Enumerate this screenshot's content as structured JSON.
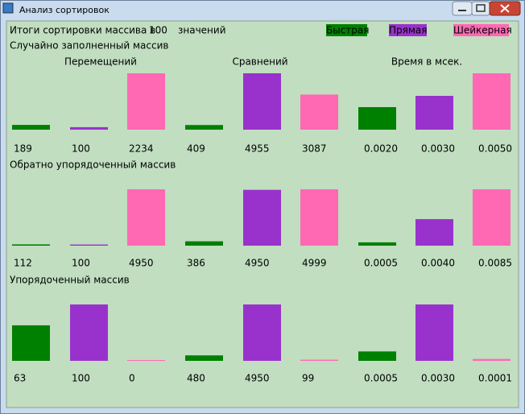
{
  "window": {
    "title": "Анализ сортировок"
  },
  "header": {
    "prefix": "Итоги сортировки массива в",
    "count": 100,
    "suffix": "значений"
  },
  "legend": [
    {
      "name": "Быстрая",
      "color": "#008000"
    },
    {
      "name": "Прямая",
      "color": "#9932cc"
    },
    {
      "name": "Шейкерная",
      "color": "#ff69b4"
    }
  ],
  "metrics": [
    "Перемещений",
    "Сравнений",
    "Время в мсек."
  ],
  "sections": [
    {
      "title": "Случайно заполненный массив",
      "groups": [
        {
          "values": [
            189,
            100,
            2234
          ]
        },
        {
          "values": [
            409,
            4955,
            3087
          ]
        },
        {
          "values": [
            0.002,
            0.003,
            0.005
          ],
          "value_labels": [
            "0.0020",
            "0.0030",
            "0.0050"
          ]
        }
      ]
    },
    {
      "title": "Обратно упорядоченный массив",
      "groups": [
        {
          "values": [
            112,
            100,
            4950
          ]
        },
        {
          "values": [
            386,
            4950,
            4999
          ]
        },
        {
          "values": [
            0.0005,
            0.004,
            0.0085
          ],
          "value_labels": [
            "0.0005",
            "0.0040",
            "0.0085"
          ]
        }
      ]
    },
    {
      "title": "Упорядоченный массив",
      "groups": [
        {
          "values": [
            63,
            100,
            0
          ]
        },
        {
          "values": [
            480,
            4950,
            99
          ]
        },
        {
          "values": [
            0.0005,
            0.003,
            0.0001
          ],
          "value_labels": [
            "0.0005",
            "0.0030",
            "0.0001"
          ]
        }
      ]
    }
  ]
}
